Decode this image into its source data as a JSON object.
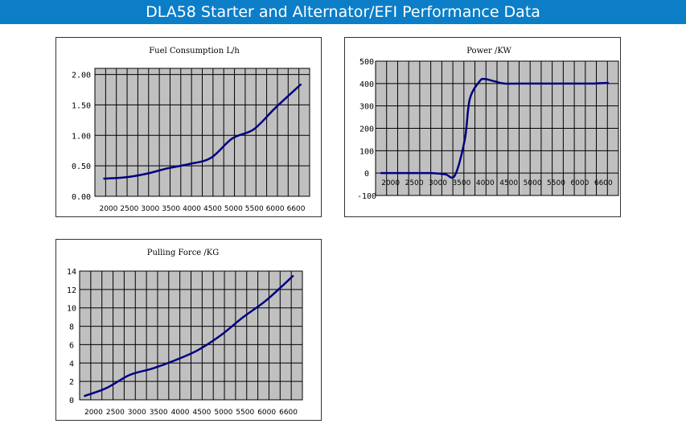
{
  "header": {
    "title": "DLA58  Starter and Alternator/EFI  Performance Data"
  },
  "colors": {
    "banner": "#0c7ec8",
    "plot_background": "#c0c0c0",
    "line": "#000080",
    "grid": "#000000"
  },
  "chart_data": [
    {
      "type": "line",
      "title": "Fuel Consumption L/h",
      "xlabel": "",
      "ylabel": "",
      "grid": true,
      "x_ticks": [
        "2000",
        "2500",
        "3000",
        "3500",
        "4000",
        "4500",
        "5000",
        "5500",
        "6000",
        "6600"
      ],
      "y_ticks": [
        "0.00",
        "0.50",
        "1.00",
        "1.50",
        "2.00"
      ],
      "xlim": [
        1800,
        6800
      ],
      "ylim": [
        0,
        2.1
      ],
      "series": [
        {
          "x": [
            2000,
            2500,
            3000,
            3500,
            4000,
            4500,
            5000,
            5500,
            6000,
            6600
          ],
          "y": [
            0.29,
            0.31,
            0.37,
            0.46,
            0.53,
            0.63,
            0.95,
            1.1,
            1.45,
            1.84
          ]
        }
      ]
    },
    {
      "type": "line",
      "title": "Power /KW",
      "xlabel": "",
      "ylabel": "",
      "grid": true,
      "x_ticks": [
        "2000",
        "2500",
        "3000",
        "3500",
        "4000",
        "4500",
        "5000",
        "5500",
        "6000",
        "6600"
      ],
      "y_ticks": [
        "-100",
        "0",
        "100",
        "200",
        "300",
        "400",
        "500"
      ],
      "xlim": [
        1900,
        6800
      ],
      "ylim": [
        -100,
        500
      ],
      "series": [
        {
          "x": [
            2000,
            2500,
            3000,
            3300,
            3500,
            3700,
            3800,
            4000,
            4100,
            4300,
            4500,
            5000,
            5500,
            6000,
            6300,
            6600
          ],
          "y": [
            0,
            0,
            0,
            -5,
            -10,
            150,
            330,
            410,
            420,
            410,
            400,
            400,
            400,
            400,
            400,
            403
          ]
        }
      ]
    },
    {
      "type": "line",
      "title": "Pulling Force /KG",
      "xlabel": "",
      "ylabel": "",
      "grid": true,
      "x_ticks": [
        "2000",
        "2500",
        "3000",
        "3500",
        "4000",
        "4500",
        "5000",
        "5500",
        "6000",
        "6600"
      ],
      "y_ticks": [
        "0",
        "2",
        "4",
        "6",
        "8",
        "10",
        "12",
        "14"
      ],
      "xlim": [
        1900,
        6800
      ],
      "ylim": [
        0,
        14
      ],
      "series": [
        {
          "x": [
            2000,
            2500,
            3000,
            3500,
            4000,
            4500,
            5000,
            5500,
            6000,
            6600
          ],
          "y": [
            0.4,
            1.3,
            2.7,
            3.4,
            4.3,
            5.4,
            7.0,
            9.0,
            10.8,
            13.5
          ]
        }
      ]
    }
  ]
}
